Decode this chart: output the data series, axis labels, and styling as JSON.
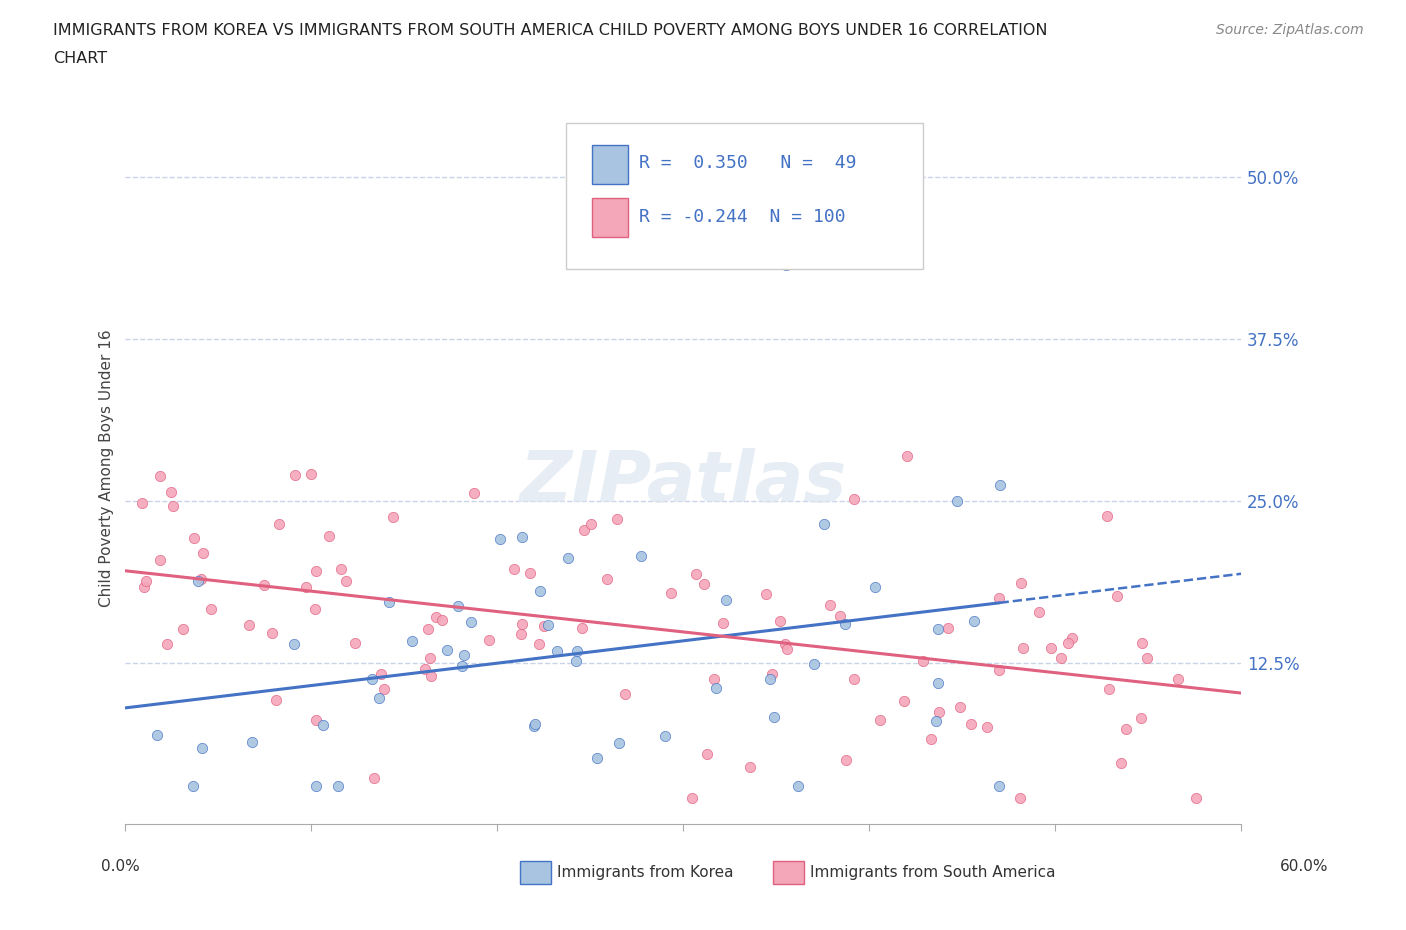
{
  "title_line1": "IMMIGRANTS FROM KOREA VS IMMIGRANTS FROM SOUTH AMERICA CHILD POVERTY AMONG BOYS UNDER 16 CORRELATION",
  "title_line2": "CHART",
  "source": "Source: ZipAtlas.com",
  "ylabel": "Child Poverty Among Boys Under 16",
  "ytick_labels": [
    "12.5%",
    "25.0%",
    "37.5%",
    "50.0%"
  ],
  "ytick_values": [
    0.125,
    0.25,
    0.375,
    0.5
  ],
  "xmin": 0.0,
  "xmax": 0.6,
  "ymin": 0.0,
  "ymax": 0.55,
  "korea_R": 0.35,
  "korea_N": 49,
  "south_america_R": -0.244,
  "south_america_N": 100,
  "korea_color": "#a8c4e0",
  "south_america_color": "#f4a7b9",
  "korea_line_color": "#4472c4",
  "south_america_line_color": "#e06080",
  "legend_text_color": "#4472c4",
  "background_color": "#ffffff",
  "grid_color": "#c8d4e8"
}
